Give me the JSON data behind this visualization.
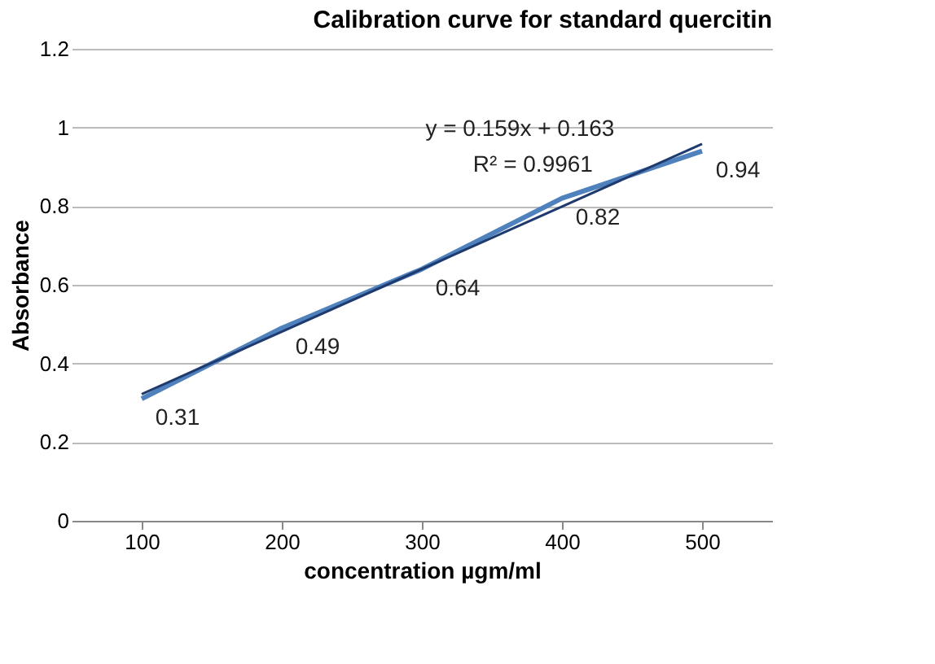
{
  "chart_data": {
    "type": "line",
    "title": "Calibration curve for standard quercitin",
    "xlabel": "concentration µgm/ml",
    "ylabel": "Absorbance",
    "categories": [
      "100",
      "200",
      "300",
      "400",
      "500"
    ],
    "series": [
      {
        "name": null,
        "color": "#4f81bd",
        "values": [
          0.31,
          0.49,
          0.64,
          0.82,
          0.94
        ],
        "data_labels": true
      },
      {
        "name": null,
        "type": "line",
        "color": "#1f3a6e",
        "x": [
          "100",
          "200",
          "300",
          "400",
          "500"
        ],
        "values": [
          0.322,
          0.481,
          0.64,
          0.799,
          0.958
        ]
      }
    ],
    "annotations": [
      "y = 0.159x + 0.163",
      "R² = 0.9961"
    ],
    "ylim": [
      0,
      1.2
    ],
    "yticks": [
      0,
      0.2,
      0.4,
      0.6,
      0.8,
      1,
      1.2
    ],
    "grid": "y",
    "marker": "none",
    "line_style": "solid"
  }
}
